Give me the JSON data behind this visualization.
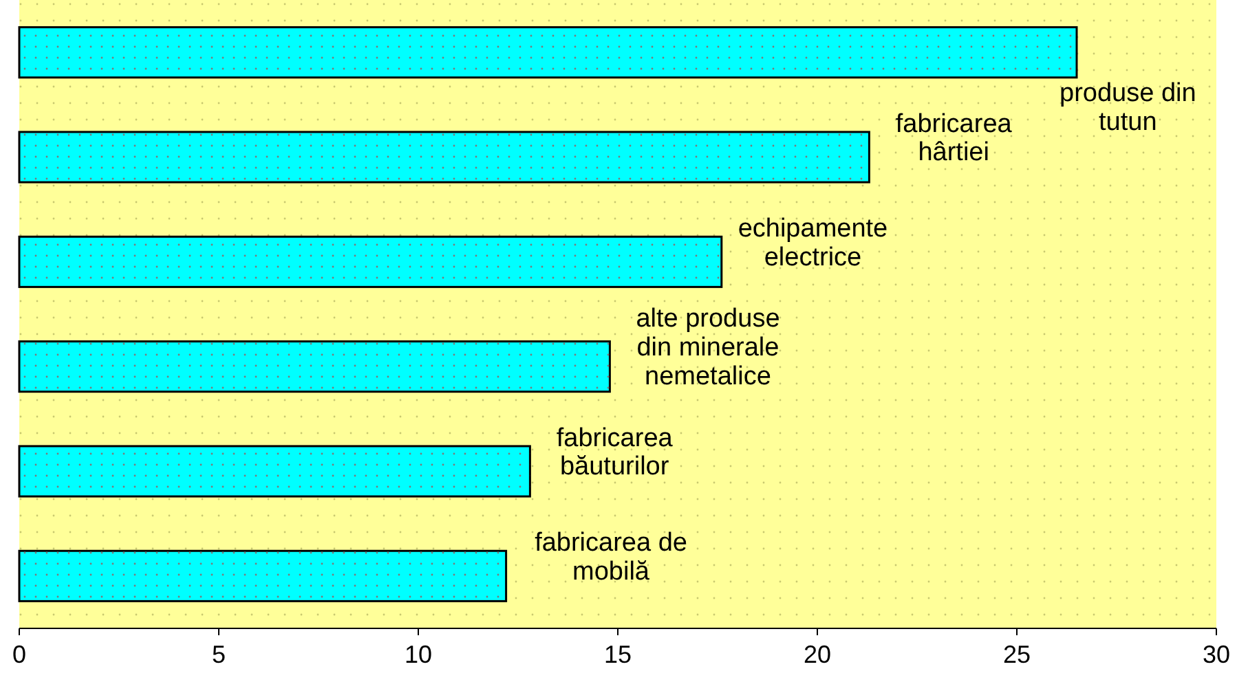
{
  "chart_data": {
    "type": "bar",
    "orientation": "horizontal",
    "categories": [
      "produse din\ntutun",
      "fabricarea\nhârtiei",
      "echipamente\nelectrice",
      "alte produse\ndin minerale\nnemetalice",
      "fabricarea\nbăuturilor",
      "fabricarea de\nmobilă"
    ],
    "values": [
      26.5,
      21.3,
      17.6,
      14.8,
      12.8,
      12.2
    ],
    "color": "#00ffff",
    "xlim": [
      0,
      30
    ],
    "xticks": [
      0,
      5,
      10,
      15,
      20,
      25,
      30
    ],
    "grid": false
  }
}
